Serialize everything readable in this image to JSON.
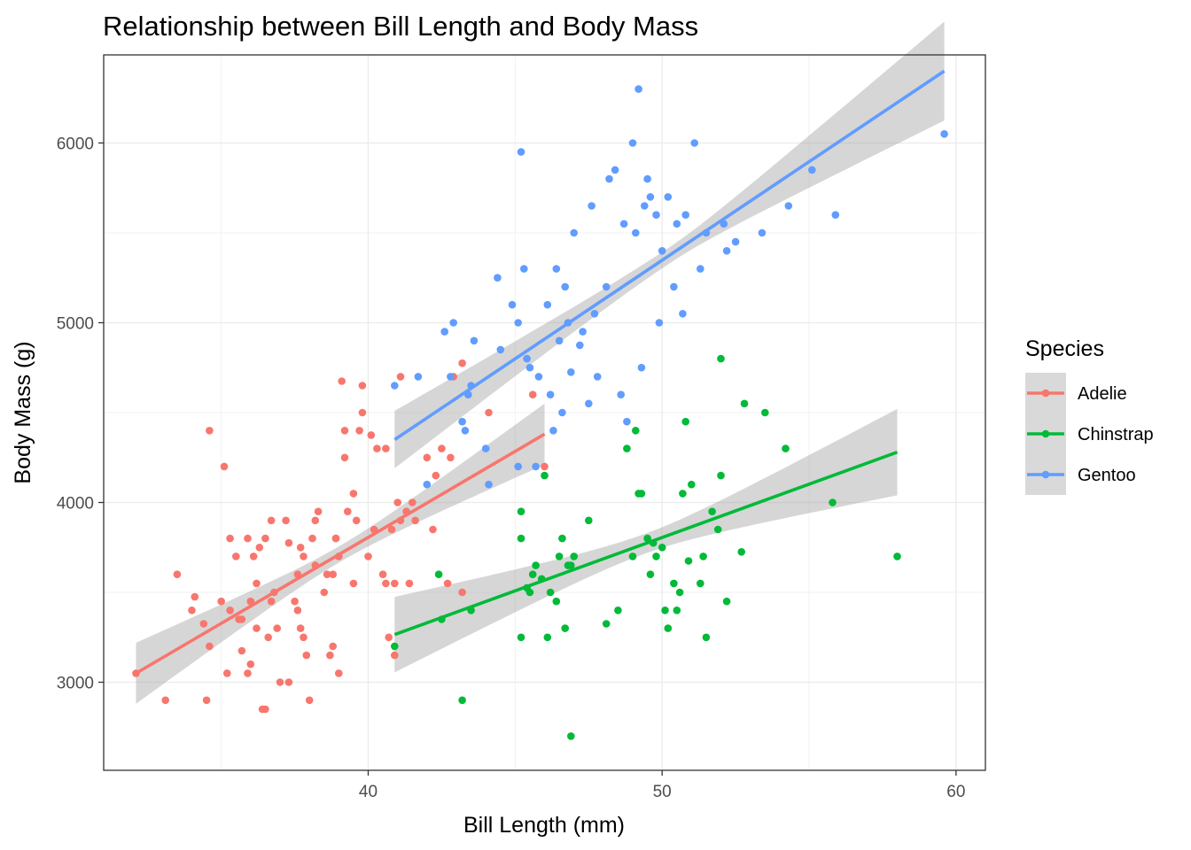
{
  "chart_data": {
    "type": "scatter",
    "title": "Relationship between Bill Length and Body Mass",
    "xlabel": "Bill Length (mm)",
    "ylabel": "Body Mass (g)",
    "xlim": [
      31.0,
      61.0
    ],
    "ylim": [
      2510,
      6490
    ],
    "x_ticks": [
      40,
      50,
      60
    ],
    "y_ticks": [
      3000,
      4000,
      5000,
      6000
    ],
    "x_tick_labels": [
      "40",
      "50",
      "60"
    ],
    "y_tick_labels": [
      "3000",
      "4000",
      "5000",
      "6000"
    ],
    "grid": true,
    "legend": {
      "title": "Species",
      "position": "right"
    },
    "series": [
      {
        "name": "Adelie",
        "color": "#F8766D",
        "fit": {
          "method": "lm",
          "x": [
            32.1,
            46.0
          ],
          "y": [
            3050,
            4380
          ],
          "ci_halfwidth_ends": [
            170,
            170
          ],
          "ci_halfwidth_mid": 45
        },
        "points": [
          [
            32.1,
            3050
          ],
          [
            33.1,
            2900
          ],
          [
            33.5,
            3600
          ],
          [
            34.0,
            3400
          ],
          [
            34.1,
            3475
          ],
          [
            34.4,
            3325
          ],
          [
            34.5,
            2900
          ],
          [
            34.6,
            4400
          ],
          [
            34.6,
            3200
          ],
          [
            35.0,
            3450
          ],
          [
            35.1,
            4200
          ],
          [
            35.2,
            3050
          ],
          [
            35.3,
            3800
          ],
          [
            35.5,
            3700
          ],
          [
            35.6,
            3350
          ],
          [
            35.7,
            3175
          ],
          [
            35.7,
            3350
          ],
          [
            35.9,
            3800
          ],
          [
            35.9,
            3050
          ],
          [
            36.0,
            3450
          ],
          [
            36.0,
            3100
          ],
          [
            36.1,
            3700
          ],
          [
            36.2,
            3300
          ],
          [
            36.2,
            3550
          ],
          [
            36.3,
            3750
          ],
          [
            36.4,
            2850
          ],
          [
            36.5,
            3800
          ],
          [
            36.5,
            2850
          ],
          [
            36.6,
            3250
          ],
          [
            36.7,
            3450
          ],
          [
            36.8,
            3500
          ],
          [
            36.9,
            3300
          ],
          [
            37.0,
            3000
          ],
          [
            37.2,
            3900
          ],
          [
            37.3,
            3775
          ],
          [
            37.3,
            3000
          ],
          [
            37.5,
            3450
          ],
          [
            37.6,
            3600
          ],
          [
            37.7,
            3750
          ],
          [
            37.8,
            3700
          ],
          [
            37.8,
            3250
          ],
          [
            37.9,
            3150
          ],
          [
            38.0,
            2900
          ],
          [
            38.1,
            3800
          ],
          [
            38.2,
            3900
          ],
          [
            38.3,
            3950
          ],
          [
            38.5,
            3500
          ],
          [
            38.6,
            3600
          ],
          [
            38.7,
            3150
          ],
          [
            38.8,
            3600
          ],
          [
            38.9,
            3800
          ],
          [
            39.0,
            3050
          ],
          [
            39.1,
            4675
          ],
          [
            39.2,
            4250
          ],
          [
            39.3,
            3950
          ],
          [
            39.5,
            3550
          ],
          [
            39.6,
            3900
          ],
          [
            39.7,
            4400
          ],
          [
            39.8,
            4650
          ],
          [
            40.0,
            3700
          ],
          [
            40.2,
            3850
          ],
          [
            40.3,
            4300
          ],
          [
            40.5,
            3600
          ],
          [
            40.6,
            4300
          ],
          [
            40.7,
            3250
          ],
          [
            40.8,
            3850
          ],
          [
            40.9,
            3150
          ],
          [
            41.0,
            4000
          ],
          [
            41.1,
            4700
          ],
          [
            41.3,
            3950
          ],
          [
            41.4,
            3550
          ],
          [
            41.5,
            4000
          ],
          [
            41.6,
            3900
          ],
          [
            42.0,
            4250
          ],
          [
            42.2,
            3850
          ],
          [
            42.3,
            4150
          ],
          [
            42.5,
            4300
          ],
          [
            42.7,
            3550
          ],
          [
            42.8,
            4250
          ],
          [
            42.9,
            4700
          ],
          [
            43.2,
            4775
          ],
          [
            43.2,
            3500
          ],
          [
            44.1,
            4500
          ],
          [
            45.6,
            4600
          ],
          [
            46.0,
            4200
          ],
          [
            37.6,
            3400
          ],
          [
            38.9,
            3800
          ],
          [
            39.2,
            4400
          ],
          [
            41.1,
            3900
          ],
          [
            36.7,
            3900
          ],
          [
            39.5,
            4050
          ],
          [
            38.2,
            3650
          ],
          [
            37.7,
            3300
          ],
          [
            40.1,
            4375
          ],
          [
            35.3,
            3400
          ],
          [
            40.6,
            3550
          ],
          [
            39.8,
            4500
          ],
          [
            40.9,
            3550
          ],
          [
            38.8,
            3200
          ],
          [
            39.0,
            3700
          ]
        ]
      },
      {
        "name": "Chinstrap",
        "color": "#00BA38",
        "fit": {
          "method": "lm",
          "x": [
            40.9,
            58.0
          ],
          "y": [
            3265,
            4280
          ],
          "ci_halfwidth_ends": [
            210,
            240
          ],
          "ci_halfwidth_mid": 55
        },
        "points": [
          [
            40.9,
            3200
          ],
          [
            42.4,
            3600
          ],
          [
            42.5,
            3350
          ],
          [
            43.2,
            2900
          ],
          [
            43.5,
            3400
          ],
          [
            45.2,
            3250
          ],
          [
            45.2,
            3950
          ],
          [
            45.4,
            3525
          ],
          [
            45.5,
            3500
          ],
          [
            45.6,
            3600
          ],
          [
            45.7,
            3650
          ],
          [
            45.9,
            3575
          ],
          [
            46.0,
            4150
          ],
          [
            46.1,
            3250
          ],
          [
            46.2,
            3500
          ],
          [
            46.4,
            3450
          ],
          [
            46.5,
            3700
          ],
          [
            46.6,
            3800
          ],
          [
            46.7,
            3300
          ],
          [
            46.8,
            3650
          ],
          [
            46.9,
            2700
          ],
          [
            47.0,
            3700
          ],
          [
            47.5,
            3900
          ],
          [
            48.1,
            3325
          ],
          [
            48.5,
            3400
          ],
          [
            49.0,
            3700
          ],
          [
            49.1,
            4400
          ],
          [
            49.2,
            4050
          ],
          [
            49.5,
            3800
          ],
          [
            49.6,
            3600
          ],
          [
            49.8,
            3700
          ],
          [
            50.0,
            3750
          ],
          [
            50.1,
            3400
          ],
          [
            50.2,
            3300
          ],
          [
            50.5,
            3400
          ],
          [
            50.6,
            3500
          ],
          [
            50.7,
            4050
          ],
          [
            50.8,
            4450
          ],
          [
            50.9,
            3675
          ],
          [
            51.0,
            4100
          ],
          [
            51.3,
            3550
          ],
          [
            51.4,
            3700
          ],
          [
            51.5,
            3250
          ],
          [
            51.7,
            3950
          ],
          [
            52.0,
            4800
          ],
          [
            52.0,
            4150
          ],
          [
            52.2,
            3450
          ],
          [
            52.7,
            3725
          ],
          [
            52.8,
            4550
          ],
          [
            53.5,
            4500
          ],
          [
            54.2,
            4300
          ],
          [
            55.8,
            4000
          ],
          [
            58.0,
            3700
          ],
          [
            45.2,
            3800
          ],
          [
            46.9,
            3650
          ],
          [
            49.3,
            4050
          ],
          [
            50.4,
            3550
          ],
          [
            51.9,
            3850
          ],
          [
            49.7,
            3775
          ],
          [
            48.8,
            4300
          ]
        ]
      },
      {
        "name": "Gentoo",
        "color": "#619CFF",
        "fit": {
          "method": "lm",
          "x": [
            40.9,
            59.6
          ],
          "y": [
            4350,
            6400
          ],
          "ci_halfwidth_ends": [
            160,
            275
          ],
          "ci_halfwidth_mid": 45
        },
        "points": [
          [
            40.9,
            4650
          ],
          [
            41.7,
            4700
          ],
          [
            42.0,
            4100
          ],
          [
            42.6,
            4950
          ],
          [
            42.8,
            4700
          ],
          [
            42.9,
            5000
          ],
          [
            43.2,
            4450
          ],
          [
            43.3,
            4400
          ],
          [
            43.4,
            4600
          ],
          [
            43.5,
            4650
          ],
          [
            43.6,
            4900
          ],
          [
            44.0,
            4300
          ],
          [
            44.4,
            5250
          ],
          [
            44.5,
            4850
          ],
          [
            44.9,
            5100
          ],
          [
            45.1,
            5000
          ],
          [
            45.2,
            5950
          ],
          [
            45.3,
            5300
          ],
          [
            45.5,
            4750
          ],
          [
            45.7,
            4200
          ],
          [
            46.1,
            5100
          ],
          [
            46.2,
            4600
          ],
          [
            46.4,
            5300
          ],
          [
            46.5,
            4900
          ],
          [
            46.8,
            5000
          ],
          [
            47.2,
            4875
          ],
          [
            47.5,
            4550
          ],
          [
            47.6,
            5650
          ],
          [
            47.8,
            4700
          ],
          [
            48.2,
            5800
          ],
          [
            48.4,
            5850
          ],
          [
            48.7,
            5550
          ],
          [
            49.0,
            6000
          ],
          [
            49.1,
            5500
          ],
          [
            49.2,
            6300
          ],
          [
            49.4,
            5650
          ],
          [
            49.5,
            5800
          ],
          [
            49.6,
            5700
          ],
          [
            49.8,
            5600
          ],
          [
            50.0,
            5400
          ],
          [
            50.2,
            5700
          ],
          [
            50.5,
            5550
          ],
          [
            50.7,
            5050
          ],
          [
            50.8,
            5600
          ],
          [
            51.1,
            6000
          ],
          [
            51.3,
            5300
          ],
          [
            51.5,
            5500
          ],
          [
            52.1,
            5550
          ],
          [
            52.2,
            5400
          ],
          [
            52.5,
            5450
          ],
          [
            53.4,
            5500
          ],
          [
            54.3,
            5650
          ],
          [
            55.1,
            5850
          ],
          [
            55.9,
            5600
          ],
          [
            59.6,
            6050
          ],
          [
            45.4,
            4800
          ],
          [
            46.9,
            4725
          ],
          [
            47.3,
            4950
          ],
          [
            48.6,
            4600
          ],
          [
            49.9,
            5000
          ],
          [
            45.8,
            4700
          ],
          [
            46.3,
            4400
          ],
          [
            47.0,
            5500
          ],
          [
            44.1,
            4100
          ],
          [
            48.1,
            5200
          ],
          [
            49.3,
            4750
          ],
          [
            50.4,
            5200
          ],
          [
            46.7,
            5200
          ],
          [
            45.1,
            4200
          ],
          [
            46.6,
            4500
          ],
          [
            47.7,
            5050
          ],
          [
            48.8,
            4450
          ]
        ]
      }
    ]
  }
}
